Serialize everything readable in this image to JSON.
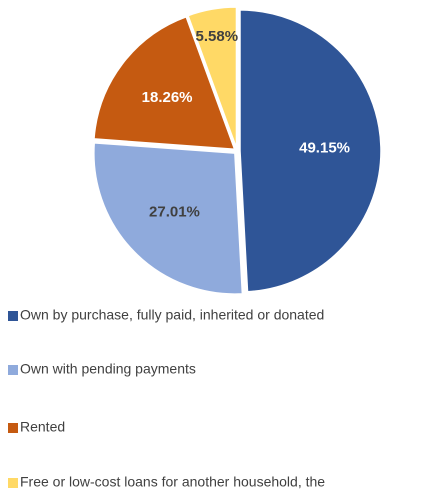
{
  "chart_data": {
    "type": "pie",
    "categories": [
      "Own by purchase, fully paid, inherited or donated",
      "Own with pending payments",
      "Rented",
      "Free or low-cost loans for another household, the"
    ],
    "values": [
      49.15,
      27.01,
      18.26,
      5.58
    ],
    "value_labels": [
      "49.15%",
      "27.01%",
      "18.26%",
      "5.58%"
    ],
    "colors": [
      "#2f5597",
      "#8faadc",
      "#c55a11",
      "#ffd966"
    ]
  }
}
